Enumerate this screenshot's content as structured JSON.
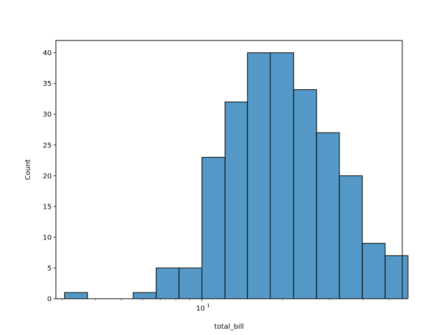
{
  "chart_data": {
    "type": "bar",
    "title": "",
    "xlabel": "total_bill",
    "ylabel": "Count",
    "x_scale": "log",
    "xlim": [
      2.85,
      56.0
    ],
    "ylim": [
      0,
      42
    ],
    "grid": false,
    "bar_color": "#5499c7",
    "edge_color": "#000000",
    "bins": [
      {
        "x0": 3.07,
        "x1": 3.74,
        "count": 1
      },
      {
        "x0": 3.74,
        "x1": 4.55,
        "count": 0
      },
      {
        "x0": 4.55,
        "x1": 5.54,
        "count": 0
      },
      {
        "x0": 5.54,
        "x1": 6.75,
        "count": 1
      },
      {
        "x0": 6.75,
        "x1": 8.21,
        "count": 5
      },
      {
        "x0": 8.21,
        "x1": 10.0,
        "count": 5
      },
      {
        "x0": 10.0,
        "x1": 12.2,
        "count": 23
      },
      {
        "x0": 12.2,
        "x1": 14.8,
        "count": 32
      },
      {
        "x0": 14.8,
        "x1": 18.0,
        "count": 40
      },
      {
        "x0": 18.0,
        "x1": 22.0,
        "count": 40
      },
      {
        "x0": 22.0,
        "x1": 26.8,
        "count": 34
      },
      {
        "x0": 26.8,
        "x1": 32.6,
        "count": 27
      },
      {
        "x0": 32.6,
        "x1": 39.7,
        "count": 20
      },
      {
        "x0": 39.7,
        "x1": 48.3,
        "count": 9
      },
      {
        "x0": 48.3,
        "x1": 58.8,
        "count": 7
      }
    ],
    "y_ticks": [
      0,
      5,
      10,
      15,
      20,
      25,
      30,
      35,
      40
    ],
    "x_major_ticks": [
      {
        "value": 10,
        "label_base": "10",
        "label_exp": "1"
      }
    ],
    "x_minor_ticks": [
      3,
      4,
      5,
      6,
      7,
      8,
      9,
      20,
      30,
      40,
      50
    ]
  }
}
